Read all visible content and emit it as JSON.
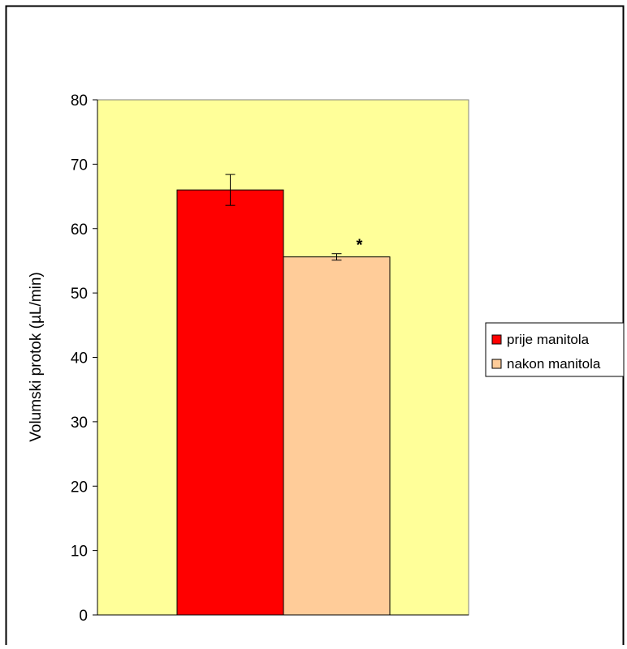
{
  "chart_data": {
    "type": "bar",
    "title": "",
    "xlabel": "",
    "ylabel": "Volumski protok (µL/min)",
    "ylim": [
      0,
      80
    ],
    "yticks": [
      "0",
      "10",
      "20",
      "30",
      "40",
      "50",
      "60",
      "70",
      "80"
    ],
    "grid": false,
    "legend_position": "right",
    "plot_background": "#ffff99",
    "series": [
      {
        "name": "prije manitola",
        "value": 66,
        "error": 2.4,
        "color": "#ff0000"
      },
      {
        "name": "nakon manitola",
        "value": 55.6,
        "error": 0.5,
        "color": "#ffcc99"
      }
    ],
    "annotations": [
      {
        "text": "*",
        "series": "nakon manitola"
      }
    ]
  }
}
